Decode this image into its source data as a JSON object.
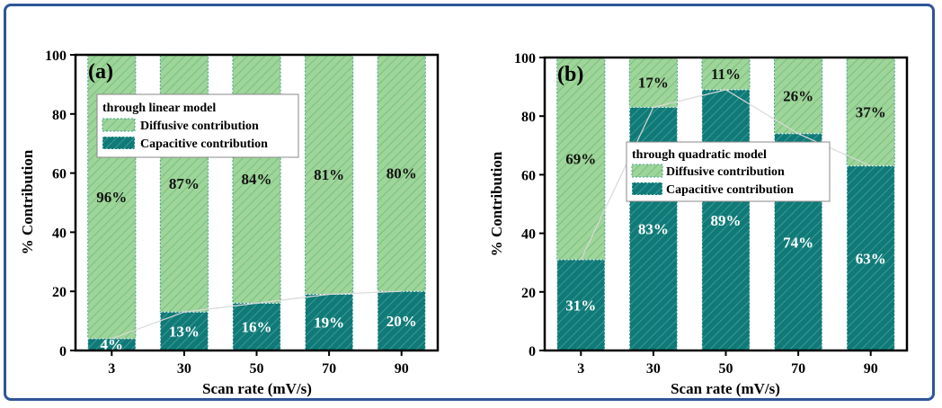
{
  "colors": {
    "diffusive": "#9fd49a",
    "diffusive_hatch": "#6bbf73",
    "capacitive": "#0f7a77",
    "capacitive_hatch": "#4a9f9b",
    "frame": "#2f5597"
  },
  "chart_data": [
    {
      "type": "bar",
      "stacked": true,
      "panel_label": "(a)",
      "categories": [
        "3",
        "30",
        "50",
        "70",
        "90"
      ],
      "series": [
        {
          "name": "Capacitive contribution",
          "values": [
            4,
            13,
            16,
            19,
            20
          ]
        },
        {
          "name": "Diffusive contribution",
          "values": [
            96,
            87,
            84,
            81,
            80
          ]
        }
      ],
      "data_labels": {
        "capacitive": [
          "4%",
          "13%",
          "16%",
          "19%",
          "20%"
        ],
        "diffusive": [
          "96%",
          "87%",
          "84%",
          "81%",
          "80%"
        ]
      },
      "legend_title": "through linear model",
      "legend_position": "top-left",
      "xlabel": "Scan rate (mV/s)",
      "ylabel": "% Contribution",
      "ylim": [
        0,
        100
      ],
      "yticks": [
        "0",
        "20",
        "40",
        "60",
        "80",
        "100"
      ],
      "grid": false
    },
    {
      "type": "bar",
      "stacked": true,
      "panel_label": "(b)",
      "categories": [
        "3",
        "30",
        "50",
        "70",
        "90"
      ],
      "series": [
        {
          "name": "Capacitive contribution",
          "values": [
            31,
            83,
            89,
            74,
            63
          ]
        },
        {
          "name": "Diffusive contribution",
          "values": [
            69,
            17,
            11,
            26,
            37
          ]
        }
      ],
      "data_labels": {
        "capacitive": [
          "31%",
          "83%",
          "89%",
          "74%",
          "63%"
        ],
        "diffusive": [
          "69%",
          "17%",
          "11%",
          "26%",
          "37%"
        ]
      },
      "legend_title": "through quadratic model",
      "legend_position": "center",
      "xlabel": "Scan rate (mV/s)",
      "ylabel": "% Contribution",
      "ylim": [
        0,
        100
      ],
      "yticks": [
        "0",
        "20",
        "40",
        "60",
        "80",
        "100"
      ],
      "grid": false
    }
  ]
}
